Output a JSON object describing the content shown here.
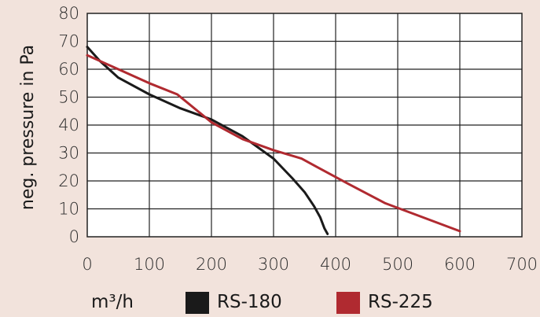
{
  "chart_data": {
    "type": "line",
    "xlabel": "m³/h",
    "ylabel": "neg. pressure in Pa",
    "xlim": [
      0,
      700
    ],
    "ylim": [
      0,
      80
    ],
    "x_ticks": [
      0,
      100,
      200,
      300,
      400,
      500,
      600,
      700
    ],
    "y_ticks": [
      0,
      10,
      20,
      30,
      40,
      50,
      60,
      70,
      80
    ],
    "grid": true,
    "legend_placement": "bottom",
    "series": [
      {
        "name": "RS-180",
        "color": "#1a1a1a",
        "points": [
          [
            0,
            68
          ],
          [
            20,
            63
          ],
          [
            50,
            57
          ],
          [
            100,
            51
          ],
          [
            150,
            46
          ],
          [
            200,
            42
          ],
          [
            250,
            36
          ],
          [
            300,
            28
          ],
          [
            330,
            21
          ],
          [
            350,
            16
          ],
          [
            365,
            11
          ],
          [
            375,
            7
          ],
          [
            382,
            3
          ],
          [
            387,
            1
          ]
        ]
      },
      {
        "name": "RS-225",
        "color": "#b02a30",
        "points": [
          [
            0,
            65
          ],
          [
            50,
            60
          ],
          [
            100,
            55
          ],
          [
            145,
            51
          ],
          [
            200,
            41
          ],
          [
            250,
            35
          ],
          [
            300,
            31
          ],
          [
            345,
            28
          ],
          [
            370,
            25
          ],
          [
            420,
            19
          ],
          [
            480,
            12
          ],
          [
            540,
            7
          ],
          [
            600,
            2
          ]
        ]
      }
    ]
  }
}
